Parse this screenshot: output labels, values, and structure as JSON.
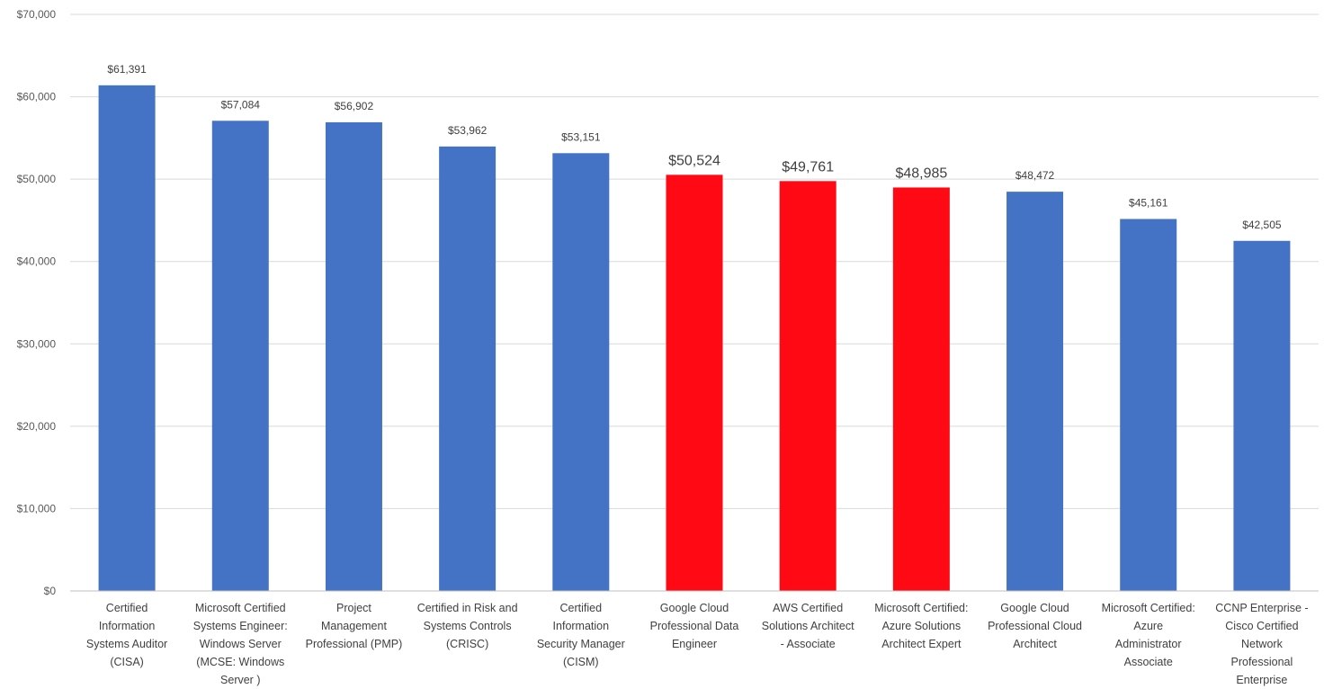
{
  "chart_data": {
    "type": "bar",
    "categories": [
      "Certified Information Systems Auditor (CISA)",
      "Microsoft Certified Systems Engineer: Windows Server (MCSE: Windows Server )",
      "Project Management Professional (PMP)",
      "Certified in Risk and Systems Controls (CRISC)",
      "Certified Information Security Manager (CISM)",
      "Google Cloud Professional Data Engineer",
      "AWS Certified Solutions Architect - Associate",
      "Microsoft Certified: Azure Solutions Architect Expert",
      "Google Cloud Professional Cloud Architect",
      "Microsoft Certified: Azure Administrator Associate",
      "CCNP Enterprise - Cisco Certified Network Professional Enterprise"
    ],
    "category_lines": [
      [
        "Certified",
        "Information",
        "Systems Auditor",
        "(CISA)"
      ],
      [
        "Microsoft Certified",
        "Systems Engineer:",
        "Windows Server",
        "(MCSE: Windows",
        "Server )"
      ],
      [
        "Project",
        "Management",
        "Professional (PMP)"
      ],
      [
        "Certified in Risk and",
        "Systems Controls",
        "(CRISC)"
      ],
      [
        "Certified",
        "Information",
        "Security Manager",
        "(CISM)"
      ],
      [
        "Google Cloud",
        "Professional Data",
        "Engineer"
      ],
      [
        "AWS Certified",
        "Solutions Architect",
        "- Associate"
      ],
      [
        "Microsoft Certified:",
        "Azure Solutions",
        "Architect Expert"
      ],
      [
        "Google Cloud",
        "Professional Cloud",
        "Architect"
      ],
      [
        "Microsoft Certified:",
        "Azure",
        "Administrator",
        "Associate"
      ],
      [
        "CCNP Enterprise -",
        "Cisco Certified",
        "Network",
        "Professional",
        "Enterprise"
      ]
    ],
    "values": [
      61391,
      57084,
      56902,
      53962,
      53151,
      50524,
      49761,
      48985,
      48472,
      45161,
      42505
    ],
    "value_labels": [
      "$61,391",
      "$57,084",
      "$56,902",
      "$53,962",
      "$53,151",
      "$50,524",
      "$49,761",
      "$48,985",
      "$48,472",
      "$45,161",
      "$42,505"
    ],
    "highlighted": [
      false,
      false,
      false,
      false,
      false,
      true,
      true,
      true,
      false,
      false,
      false
    ],
    "colors": {
      "default": "#4472c4",
      "highlight": "#ff0a14"
    },
    "ylim": [
      0,
      70000
    ],
    "yticks": [
      0,
      10000,
      20000,
      30000,
      40000,
      50000,
      60000,
      70000
    ],
    "ytick_labels": [
      "$0",
      "$10,000",
      "$20,000",
      "$30,000",
      "$40,000",
      "$50,000",
      "$60,000",
      "$70,000"
    ],
    "grid": true,
    "legend": "none"
  }
}
